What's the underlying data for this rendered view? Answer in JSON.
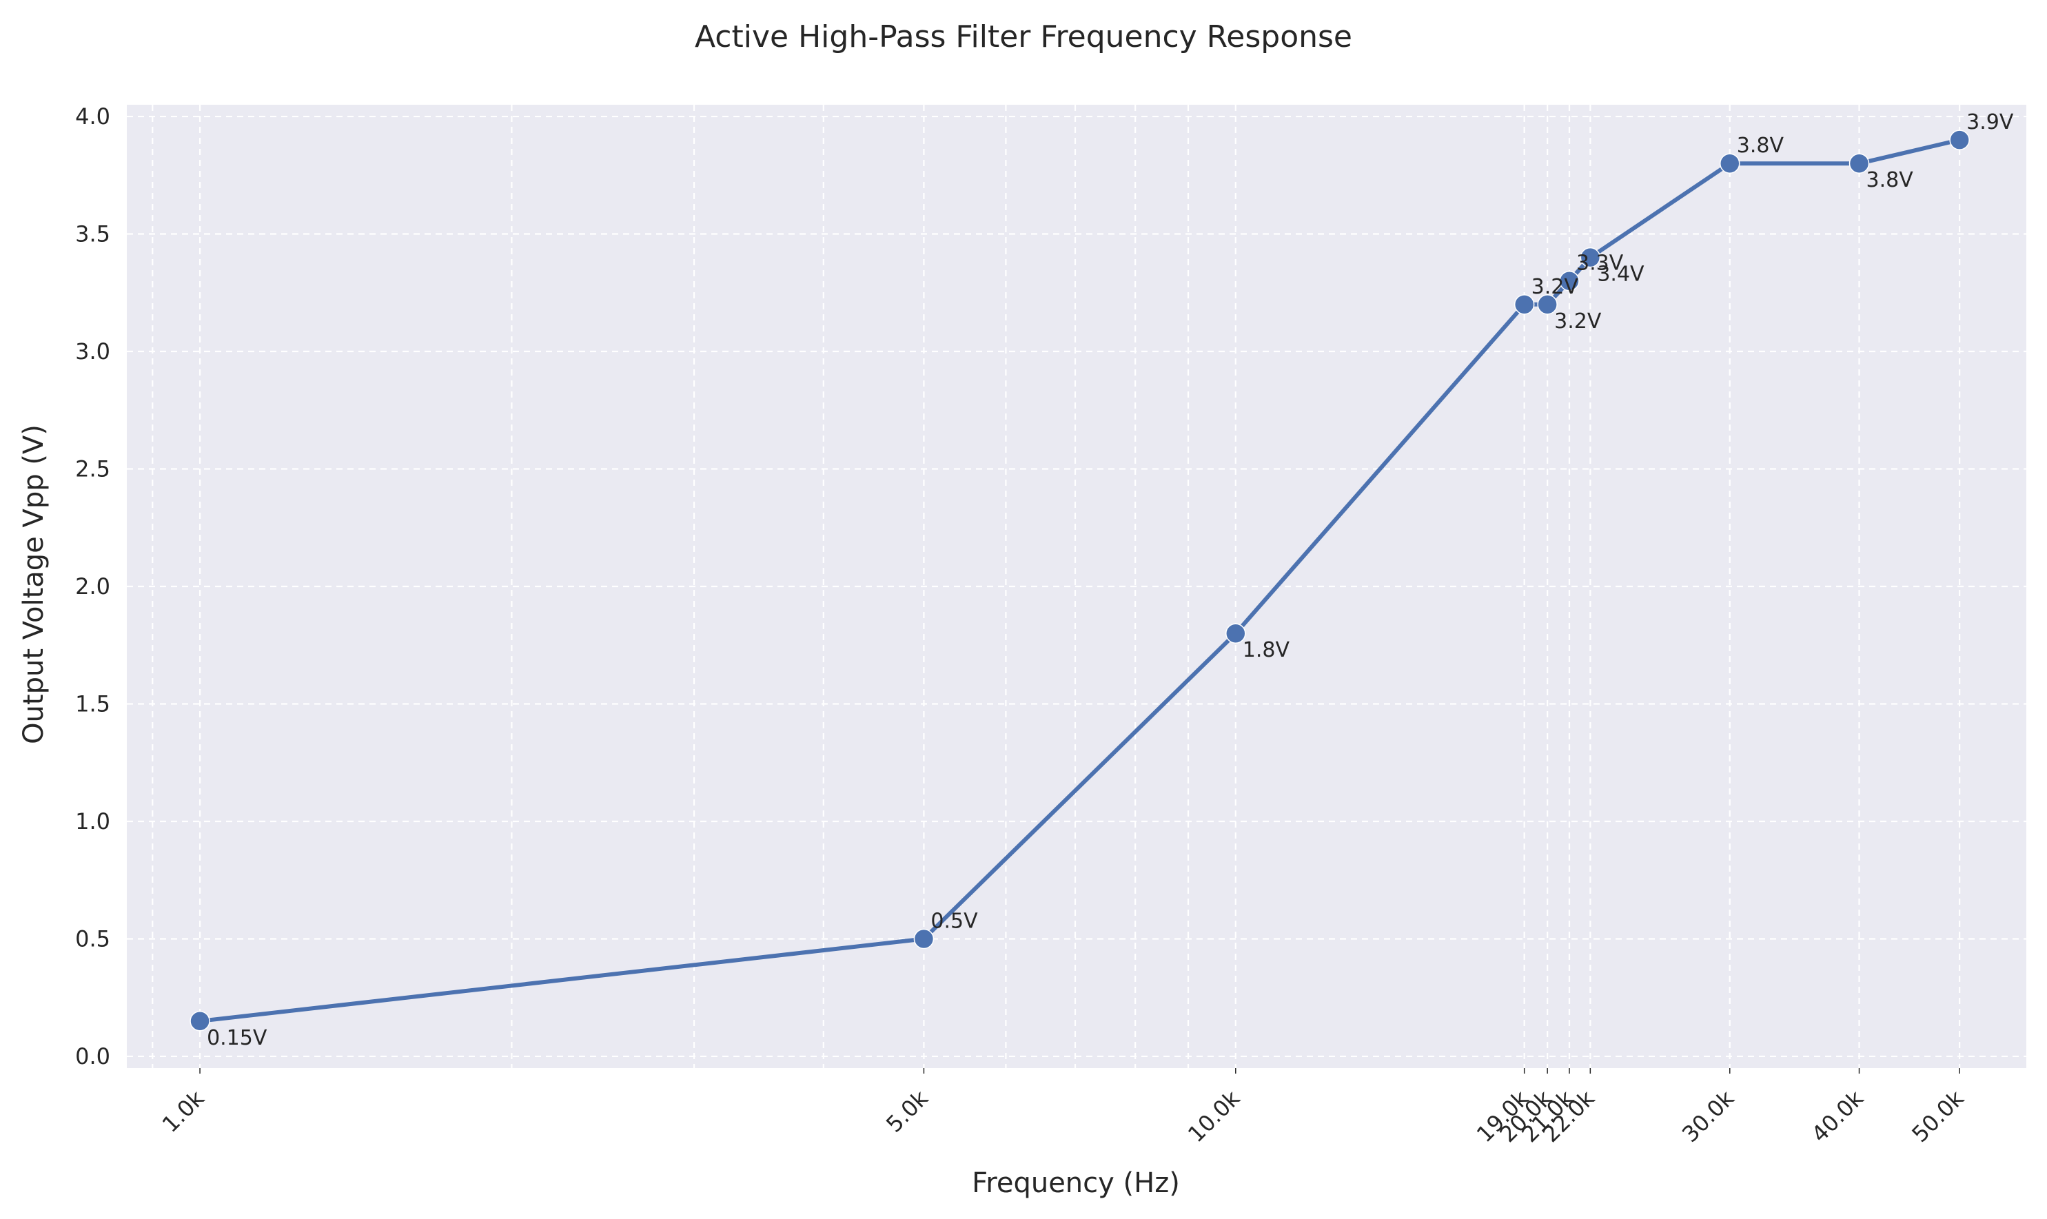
{
  "chart_data": {
    "type": "line",
    "title": "Active High-Pass Filter Frequency Response",
    "xlabel": "Frequency (Hz)",
    "ylabel": "Output Voltage Vpp (V)",
    "x_scale": "log",
    "xlim": [
      850,
      58000
    ],
    "ylim": [
      -0.05,
      4.05
    ],
    "grid": true,
    "x_tick_labels": [
      "1.0k",
      "5.0k",
      "10.0k",
      "19.0k",
      "20.0k",
      "21.0k",
      "22.0k",
      "30.0k",
      "40.0k",
      "50.0k"
    ],
    "y_ticks": [
      0.0,
      0.5,
      1.0,
      1.5,
      2.0,
      2.5,
      3.0,
      3.5,
      4.0
    ],
    "y_tick_labels": [
      "0.0",
      "0.5",
      "1.0",
      "1.5",
      "2.0",
      "2.5",
      "3.0",
      "3.5",
      "4.0"
    ],
    "series": [
      {
        "color": "#4c72b0",
        "points": [
          {
            "x": 1000,
            "y": 0.15,
            "label": "0.15V",
            "label_pos": "below"
          },
          {
            "x": 5000,
            "y": 0.5,
            "label": "0.5V",
            "label_pos": "above"
          },
          {
            "x": 10000,
            "y": 1.8,
            "label": "1.8V",
            "label_pos": "below"
          },
          {
            "x": 19000,
            "y": 3.2,
            "label": "3.2V",
            "label_pos": "above"
          },
          {
            "x": 20000,
            "y": 3.2,
            "label": "3.2V",
            "label_pos": "below"
          },
          {
            "x": 21000,
            "y": 3.3,
            "label": "3.3V",
            "label_pos": "above"
          },
          {
            "x": 22000,
            "y": 3.4,
            "label": "3.4V",
            "label_pos": "below"
          },
          {
            "x": 30000,
            "y": 3.8,
            "label": "3.8V",
            "label_pos": "above"
          },
          {
            "x": 40000,
            "y": 3.8,
            "label": "3.8V",
            "label_pos": "below"
          },
          {
            "x": 50000,
            "y": 3.9,
            "label": "3.9V",
            "label_pos": "above"
          }
        ]
      }
    ]
  }
}
